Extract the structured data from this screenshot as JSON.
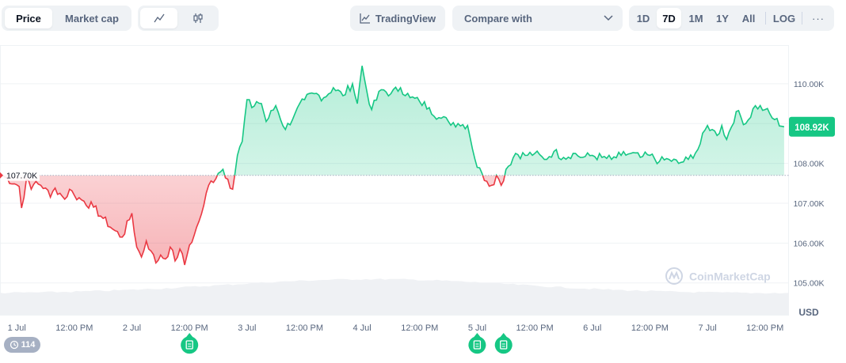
{
  "toolbar": {
    "view_tabs": [
      {
        "label": "Price",
        "active": true
      },
      {
        "label": "Market cap",
        "active": false
      }
    ],
    "chart_style_icons": [
      "line-chart-icon",
      "candlestick-icon"
    ],
    "tradingview_label": "TradingView",
    "compare_label": "Compare with",
    "ranges": [
      {
        "label": "1D",
        "active": false
      },
      {
        "label": "7D",
        "active": true
      },
      {
        "label": "1M",
        "active": false
      },
      {
        "label": "1Y",
        "active": false
      },
      {
        "label": "All",
        "active": false
      },
      {
        "label": "LOG",
        "active": false
      }
    ],
    "more_label": "···"
  },
  "chart": {
    "start_label": "107.70K",
    "current_label": "108.92K",
    "currency": "USD",
    "watermark": "CoinMarketCap",
    "events_count": "114",
    "colors": {
      "up": "#16c784",
      "down": "#ea3943",
      "up_fill": "#d8f5e8",
      "down_fill": "#fbd9db",
      "grid": "#eff2f5",
      "volume": "#eef0f3"
    }
  },
  "chart_data": {
    "type": "area",
    "title": "",
    "baseline": 107.7,
    "unit": "K USD",
    "y_ticks": [
      "105.00K",
      "106.00K",
      "107.00K",
      "108.00K",
      "109.00K",
      "110.00K"
    ],
    "ylim": [
      104.2,
      110.95
    ],
    "x_ticks": [
      "1 Jul",
      "12:00 PM",
      "2 Jul",
      "12:00 PM",
      "3 Jul",
      "12:00 PM",
      "4 Jul",
      "12:00 PM",
      "5 Jul",
      "12:00 PM",
      "6 Jul",
      "12:00 PM",
      "7 Jul",
      "12:00 PM"
    ],
    "x_tick_hours": [
      0,
      12,
      24,
      36,
      48,
      60,
      72,
      84,
      96,
      108,
      120,
      132,
      144,
      156
    ],
    "xlim": [
      -3.5,
      161
    ],
    "grid": true,
    "note_markers_hours": [
      36,
      96,
      101.5
    ],
    "x_hours": [
      -3,
      0.5,
      1,
      2,
      3,
      4,
      5,
      6,
      7,
      8,
      9,
      10,
      11,
      12,
      14,
      16,
      18,
      20,
      22,
      24,
      25,
      26,
      27,
      28,
      29,
      30,
      31,
      32,
      33,
      34,
      35,
      36,
      37,
      38,
      39,
      40,
      42,
      43,
      44,
      45,
      46,
      47,
      48,
      49,
      50,
      51,
      52,
      54,
      56,
      58,
      60,
      62,
      64,
      66,
      68,
      70,
      71,
      72,
      73,
      74,
      76,
      78,
      80,
      82,
      84,
      86,
      88,
      90,
      92,
      94,
      96,
      97,
      98,
      99,
      100,
      101,
      102,
      104,
      106,
      108,
      110,
      112,
      114,
      116,
      118,
      120,
      122,
      124,
      126,
      128,
      130,
      132,
      134,
      136,
      138,
      140,
      142,
      144,
      145,
      146,
      147,
      148,
      150,
      152,
      154,
      156,
      158,
      160
    ],
    "y_values": [
      107.7,
      107.42,
      106.88,
      107.6,
      107.35,
      107.55,
      107.45,
      107.38,
      107.15,
      107.38,
      107.25,
      107.1,
      107.35,
      107.2,
      107.05,
      106.9,
      106.62,
      106.35,
      106.15,
      106.75,
      105.9,
      105.65,
      106.05,
      105.8,
      105.5,
      105.7,
      105.6,
      105.9,
      105.55,
      105.85,
      105.45,
      105.95,
      106.2,
      106.55,
      106.95,
      107.45,
      107.75,
      107.85,
      107.6,
      107.35,
      108.2,
      108.55,
      109.6,
      109.4,
      109.55,
      109.5,
      109.05,
      109.45,
      108.85,
      109.25,
      109.6,
      109.75,
      109.65,
      109.9,
      109.7,
      110.0,
      109.5,
      110.45,
      109.8,
      109.35,
      109.85,
      109.75,
      109.9,
      109.65,
      109.55,
      109.4,
      109.15,
      109.05,
      109.0,
      108.95,
      107.9,
      107.75,
      107.55,
      107.45,
      107.7,
      107.45,
      107.85,
      108.25,
      108.2,
      108.25,
      108.1,
      108.3,
      108.15,
      108.25,
      108.15,
      108.2,
      108.15,
      108.1,
      108.2,
      108.25,
      108.15,
      108.2,
      108.05,
      108.1,
      108.0,
      108.1,
      108.35,
      108.95,
      108.85,
      108.7,
      108.95,
      108.6,
      109.3,
      109.0,
      109.45,
      109.35,
      109.1,
      108.92
    ]
  }
}
